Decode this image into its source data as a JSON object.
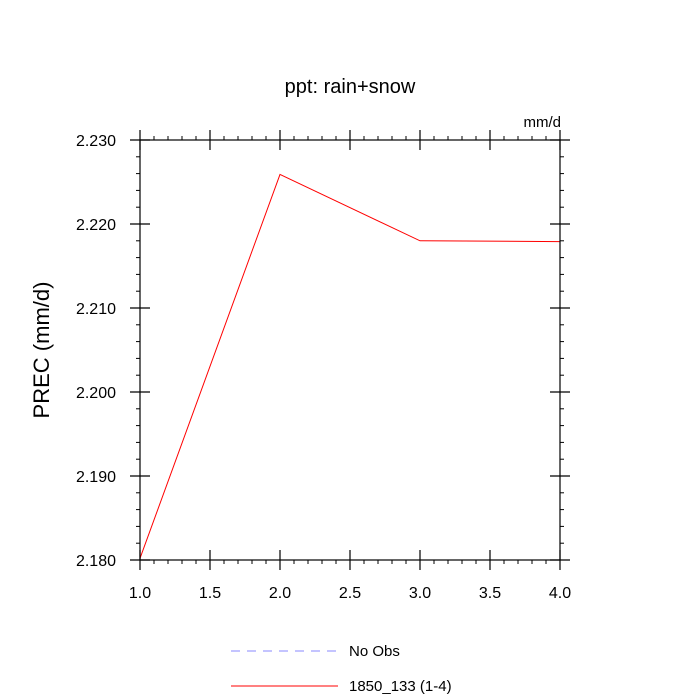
{
  "chart_data": {
    "type": "line",
    "title": "ppt: rain+snow",
    "units": "mm/d",
    "xlabel": "",
    "ylabel": "PREC  (mm/d)",
    "xlim": [
      1.0,
      4.0
    ],
    "ylim": [
      2.18,
      2.23
    ],
    "xticks": [
      1.0,
      1.5,
      2.0,
      2.5,
      3.0,
      3.5,
      4.0
    ],
    "xtick_labels": [
      "1.0",
      "1.5",
      "2.0",
      "2.5",
      "3.0",
      "3.5",
      "4.0"
    ],
    "yticks": [
      2.18,
      2.19,
      2.2,
      2.21,
      2.22,
      2.23
    ],
    "ytick_labels": [
      "2.180",
      "2.190",
      "2.200",
      "2.210",
      "2.220",
      "2.230"
    ],
    "grid": false,
    "legend_position": "bottom-center",
    "series": [
      {
        "name": "No Obs",
        "color": "#8a8aff",
        "dash": "dashed",
        "x": [],
        "y": []
      },
      {
        "name": "1850_133 (1-4)",
        "color": "#ff0000",
        "dash": "solid",
        "x": [
          1.0,
          2.0,
          3.0,
          4.0
        ],
        "y": [
          2.1802,
          2.2259,
          2.218,
          2.2179
        ]
      }
    ]
  }
}
